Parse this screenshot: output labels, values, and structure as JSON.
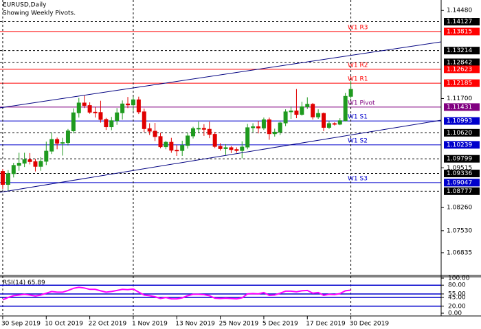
{
  "chart_data": [
    {
      "type": "candlestick",
      "title": "EURUSD,Daily",
      "subtitle": "Showing Weekly Pivots.",
      "open": [
        1.094,
        1.0899,
        1.0933,
        1.0959,
        1.0966,
        1.0977,
        1.0971,
        1.0956,
        1.0972,
        1.1004,
        1.1041,
        1.1029,
        1.1031,
        1.1068,
        1.1125,
        1.1156,
        1.1148,
        1.1127,
        1.1126,
        1.1104,
        1.1081,
        1.11,
        1.1125,
        1.1153,
        1.115,
        1.1166,
        1.1128,
        1.1075,
        1.1067,
        1.105,
        1.1018,
        1.1032,
        1.1007,
        1.1006,
        1.1022,
        1.1052,
        1.1075,
        1.1076,
        1.1073,
        1.1057,
        1.1019,
        1.1012,
        1.1015,
        1.1009,
        1.1006,
        1.1017,
        1.1078,
        1.1081,
        1.1077,
        1.1103,
        1.1059,
        1.1064,
        1.1093,
        1.1128,
        1.1131,
        1.112,
        1.1144,
        1.1152,
        1.1112,
        1.1123,
        1.1079,
        1.1091,
        1.1089,
        1.11,
        1.1177
      ],
      "high": [
        1.0948,
        1.0944,
        1.0967,
        1.0999,
        1.0999,
        1.0998,
        1.098,
        1.0985,
        1.1034,
        1.1063,
        1.1047,
        1.1046,
        1.1074,
        1.1139,
        1.1172,
        1.1179,
        1.1158,
        1.1144,
        1.1163,
        1.1109,
        1.1112,
        1.114,
        1.1164,
        1.1175,
        1.1176,
        1.1176,
        1.1138,
        1.1092,
        1.1093,
        1.1062,
        1.1037,
        1.1046,
        1.1024,
        1.1037,
        1.1062,
        1.1081,
        1.1097,
        1.1089,
        1.1097,
        1.1065,
        1.1029,
        1.1026,
        1.102,
        1.1016,
        1.1035,
        1.109,
        1.1092,
        1.1099,
        1.111,
        1.111,
        1.1075,
        1.1097,
        1.1136,
        1.1145,
        1.12,
        1.116,
        1.1174,
        1.1156,
        1.1136,
        1.1126,
        1.1099,
        1.1095,
        1.1108,
        1.1188,
        1.1225
      ],
      "low": [
        1.0885,
        1.0879,
        1.0921,
        1.0942,
        1.0954,
        1.0962,
        1.094,
        1.0942,
        1.096,
        1.0995,
        1.101,
        1.099,
        1.1022,
        1.106,
        1.111,
        1.114,
        1.1122,
        1.111,
        1.1094,
        1.1071,
        1.107,
        1.1087,
        1.1104,
        1.114,
        1.1131,
        1.1121,
        1.1064,
        1.1055,
        1.1036,
        1.1013,
        1.101,
        1.0999,
        1.0989,
        1.0989,
        1.1012,
        1.1044,
        1.1063,
        1.1052,
        1.1045,
        1.1014,
        1.1006,
        1.0992,
        1.0998,
        1.0999,
        1.0981,
        1.101,
        1.1064,
        1.106,
        1.1071,
        1.104,
        1.105,
        1.1055,
        1.1083,
        1.1106,
        1.1108,
        1.1116,
        1.1137,
        1.1104,
        1.1106,
        1.1067,
        1.1074,
        1.1085,
        1.1086,
        1.1098,
        1.117
      ],
      "close": [
        1.0899,
        1.0933,
        1.0959,
        1.0966,
        1.0977,
        1.0971,
        1.0956,
        1.0972,
        1.1004,
        1.1041,
        1.1029,
        1.1031,
        1.1068,
        1.1125,
        1.1156,
        1.1148,
        1.1127,
        1.1126,
        1.1104,
        1.1081,
        1.11,
        1.1125,
        1.1153,
        1.115,
        1.1166,
        1.1128,
        1.1075,
        1.1067,
        1.105,
        1.1018,
        1.1032,
        1.1007,
        1.1006,
        1.1022,
        1.1052,
        1.1075,
        1.1076,
        1.1073,
        1.1057,
        1.1019,
        1.1012,
        1.1015,
        1.1009,
        1.1006,
        1.1017,
        1.1078,
        1.1081,
        1.1077,
        1.1103,
        1.1059,
        1.1064,
        1.1093,
        1.1128,
        1.1131,
        1.112,
        1.1144,
        1.1152,
        1.1112,
        1.1123,
        1.1079,
        1.1091,
        1.1089,
        1.11,
        1.1177,
        1.1199
      ],
      "up_color": "#1f9a1f",
      "down_color": "#e00000",
      "xlim": [
        -0.5,
        80.6
      ],
      "xticks": [
        {
          "value": 0,
          "label": "30 Sep 2019"
        },
        {
          "value": 8,
          "label": "10 Oct 2019"
        },
        {
          "value": 16,
          "label": "22 Oct 2019"
        },
        {
          "value": 24,
          "label": "1 Nov 2019"
        },
        {
          "value": 32,
          "label": "13 Nov 2019"
        },
        {
          "value": 40,
          "label": "25 Nov 2019"
        },
        {
          "value": 48,
          "label": "5 Dec 2019"
        },
        {
          "value": 56,
          "label": "17 Dec 2019"
        },
        {
          "value": 64,
          "label": "30 Dec 2019"
        }
      ],
      "ylim": [
        1.0614,
        1.1481
      ],
      "yticks": [
        {
          "value": 1.1448,
          "label": "1.14480"
        },
        {
          "value": 1.117,
          "label": "1.11700"
        },
        1.09515,
        {
          "value": 1.0826,
          "label": "1.08260"
        },
        {
          "value": 1.0753,
          "label": "1.07530"
        },
        1.06835
      ],
      "price_levels": [
        1.14127,
        1.13214,
        1.12842,
        {
          "value": 1.1062,
          "label": "1.10620"
        },
        1.09799,
        1.09336,
        1.08777
      ],
      "levels": [
        {
          "name": "W1 R3",
          "value": 1.13815,
          "color": "#ff0000"
        },
        {
          "name": "W1 R2",
          "value": 1.12623,
          "color": "#ff0000"
        },
        {
          "name": "W1 R1",
          "value": 1.12185,
          "color": "#ff0000"
        },
        {
          "name": "W1 Pivot",
          "value": 1.11431,
          "color": "#800080"
        },
        {
          "name": "W1 S1",
          "value": 1.10993,
          "color": "#0000cc"
        },
        {
          "name": "W1 S2",
          "value": 1.10239,
          "color": "#0000cc"
        },
        {
          "name": "W1 S3",
          "value": 1.09047,
          "color": "#0000cc"
        }
      ]
    },
    {
      "type": "line",
      "title": "RSI(14)",
      "series": [
        {
          "color": "#ff00ff",
          "values": [
            38,
            45,
            50,
            52,
            54,
            52,
            49,
            52,
            57,
            62,
            60,
            60,
            65,
            71,
            74,
            72,
            68,
            68,
            64,
            60,
            62,
            65,
            68,
            67,
            69,
            60,
            52,
            50,
            47,
            42,
            45,
            41,
            41,
            44,
            50,
            54,
            54,
            53,
            50,
            43,
            42,
            43,
            42,
            41,
            44,
            55,
            56,
            55,
            59,
            51,
            52,
            57,
            63,
            63,
            61,
            64,
            65,
            57,
            59,
            51,
            54,
            53,
            56,
            64,
            65.89
          ]
        }
      ],
      "level_color": "#0000cc",
      "ylim": [
        0,
        100
      ],
      "yticks": [
        {
          "value": 100,
          "label": "100.00"
        },
        {
          "value": 80,
          "label": "80.00"
        },
        {
          "value": 55,
          "label": "55.00"
        },
        {
          "value": 45,
          "label": "45.00"
        },
        {
          "value": 20,
          "label": "20.00"
        },
        {
          "value": 0,
          "label": "0.00"
        }
      ]
    }
  ]
}
